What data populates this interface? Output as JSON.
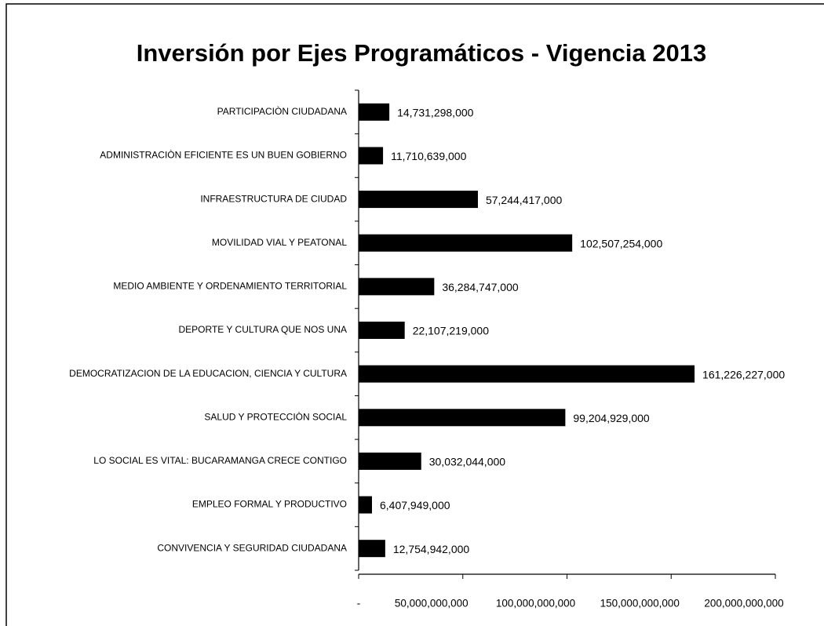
{
  "chart_data": {
    "type": "bar",
    "orientation": "horizontal",
    "title": "Inversión por Ejes Programáticos - Vigencia 2013",
    "categories": [
      "PARTICIPACIÒN CIUDADANA",
      "ADMINISTRACIÒN EFICIENTE  ES UN BUEN GOBIERNO",
      "INFRAESTRUCTURA  DE CIUDAD",
      "MOVILIDAD VIAL Y PEATONAL",
      "MEDIO AMBIENTE  Y ORDENAMIENTO  TERRITORIAL",
      "DEPORTE Y CULTURA QUE  NOS UNA",
      "DEMOCRATIZACION DE LA EDUCACION, CIENCIA Y CULTURA",
      "SALUD Y PROTECCIÒN SOCIAL",
      "LO SOCIAL ES VITAL: BUCARAMANGA  CRECE CONTIGO",
      "EMPLEO FORMAL Y PRODUCTIVO",
      "CONVIVENCIA  Y SEGURIDAD CIUDADANA"
    ],
    "values": [
      14731298000,
      11710639000,
      57244417000,
      102507254000,
      36284747000,
      22107219000,
      161226227000,
      99204929000,
      30032044000,
      6407949000,
      12754942000
    ],
    "value_labels": [
      "14,731,298,000",
      "11,710,639,000",
      "57,244,417,000",
      "102,507,254,000",
      "36,284,747,000",
      "22,107,219,000",
      "161,226,227,000",
      "99,204,929,000",
      "30,032,044,000",
      "6,407,949,000",
      "12,754,942,000"
    ],
    "color": "#000000",
    "xlim": [
      0,
      200000000000
    ],
    "xticks": [
      {
        "value": 0,
        "label": "-"
      },
      {
        "value": 50000000000,
        "label": "50,000,000,000"
      },
      {
        "value": 100000000000,
        "label": "100,000,000,000"
      },
      {
        "value": 150000000000,
        "label": "150,000,000,000"
      },
      {
        "value": 200000000000,
        "label": "200,000,000,000"
      }
    ]
  }
}
